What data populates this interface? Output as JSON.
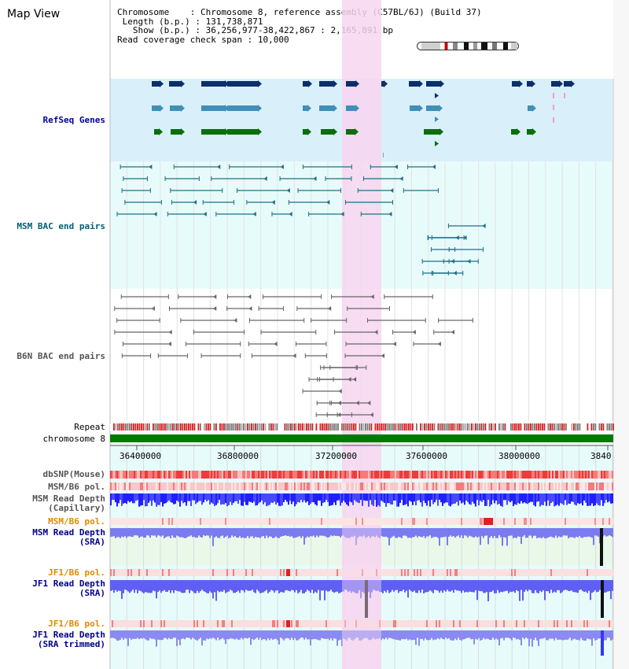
{
  "title": "Map View",
  "info": {
    "chromosome_key": "Chromosome",
    "chromosome_val": "Chromosome 8, reference assembly (C57BL/6J) (Build 37)",
    "length_key": "Length (b.p.)",
    "length_val": "131,738,871",
    "show_key": "Show (b.p.)",
    "show_val": "36,256,977-38,422,867 : 2,165,891 bp",
    "span_key": "Read coverage check span",
    "span_val": "10,000"
  },
  "tracks": {
    "refseq": "RefSeq Genes",
    "msm_bac": "MSM BAC end pairs",
    "b6n_bac": "B6N BAC end pairs",
    "repeat": "Repeat",
    "chromosome": "chromosome 8",
    "dbsnp": "dbSNP(Mouse)",
    "msm_b6_pol": "MSM/B6 pol.",
    "msm_depth_cap_1": "MSM Read Depth",
    "msm_depth_cap_2": "(Capillary)",
    "msm_b6_pol_sra": "MSM/B6 pol.",
    "msm_depth_sra_1": "MSM Read Depth",
    "msm_depth_sra_2": "(SRA)",
    "jf1_b6_pol": "JF1/B6 pol.",
    "jf1_depth_sra_1": "JF1 Read Depth",
    "jf1_depth_sra_2": "(SRA)",
    "jf1_b6_pol_2": "JF1/B6 pol.",
    "jf1_depth_trim_1": "JF1 Read Depth",
    "jf1_depth_trim_2": "(SRA trimmed)"
  },
  "axis_ticks": [
    "36400000",
    "36800000",
    "37200000",
    "37600000",
    "38000000",
    "3840"
  ],
  "colors": {
    "refseq_bg": "#d9f0fb",
    "bac_bg": "#e8fbfb",
    "highlight": "#f7d6f0",
    "gene_dark": "#0a2f6b",
    "gene_mid": "#3f8fb8",
    "gene_green": "#0a6e0a",
    "bac_teal": "#1b6f86",
    "bac_gray": "#666666",
    "chrom_green": "#007a00"
  }
}
